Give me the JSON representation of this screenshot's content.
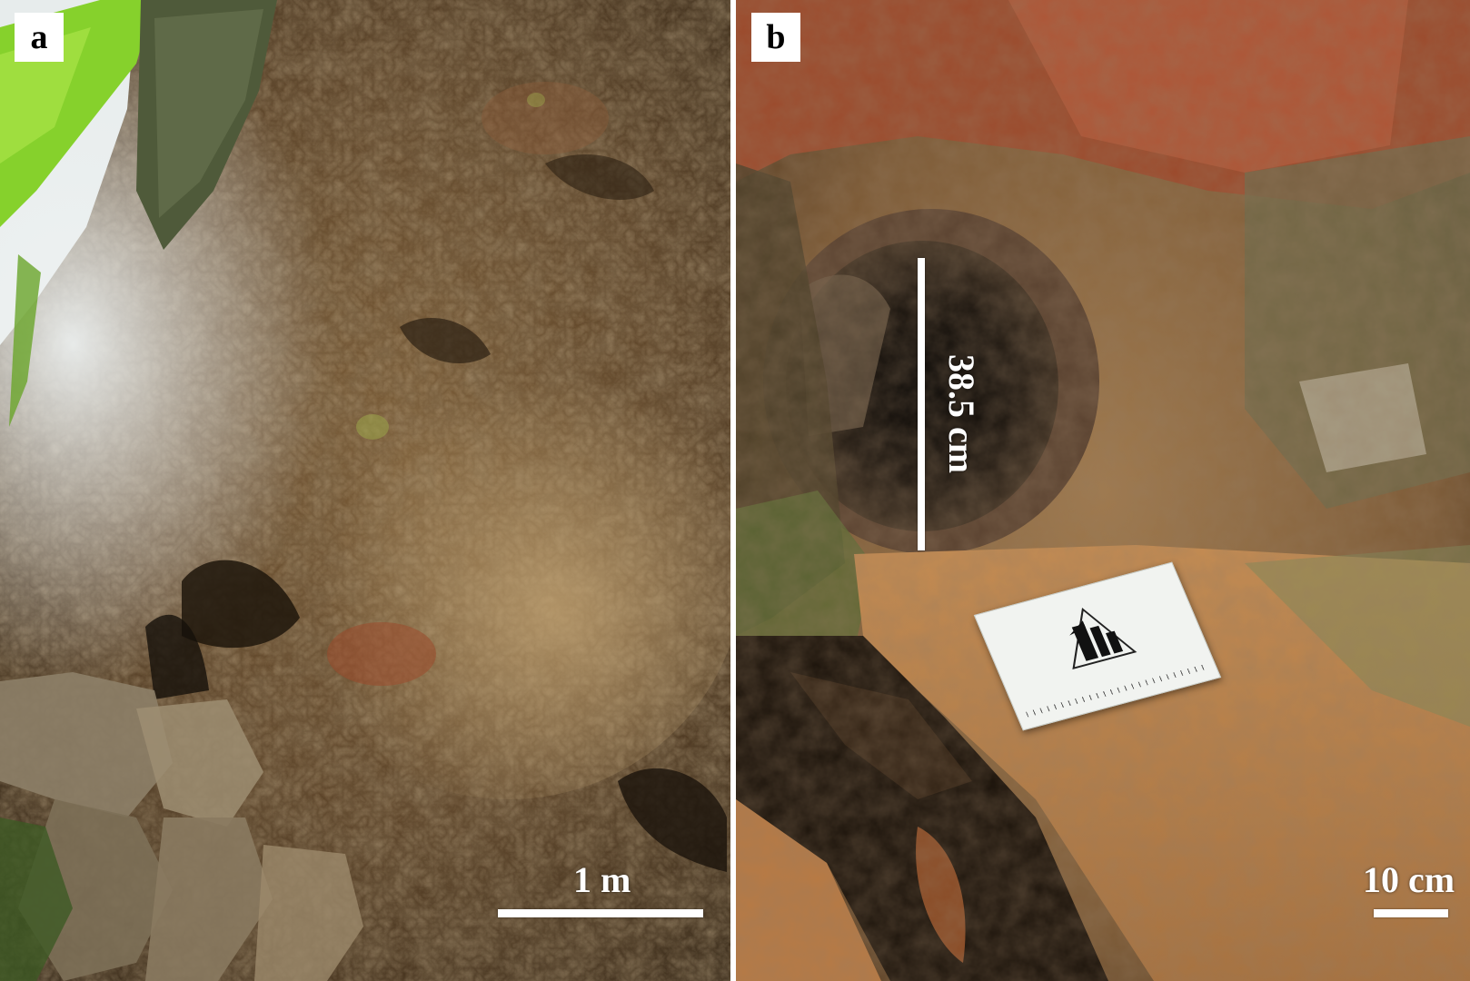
{
  "figure": {
    "panels": [
      {
        "label": "a",
        "scale_bar": {
          "text": "1 m"
        }
      },
      {
        "label": "b",
        "scale_bar": {
          "text": "10 cm"
        },
        "measurement": {
          "text": "38.5 cm"
        }
      }
    ]
  },
  "colors": {
    "label_background": "#ffffff",
    "label_text": "#000000",
    "annotation": "#ffffff",
    "rock_dark": "#3a2a17",
    "rock_mid": "#6e5231",
    "rock_light": "#b08a58",
    "rock_red": "#9c4a2c",
    "foliage": "#7cc92a"
  }
}
